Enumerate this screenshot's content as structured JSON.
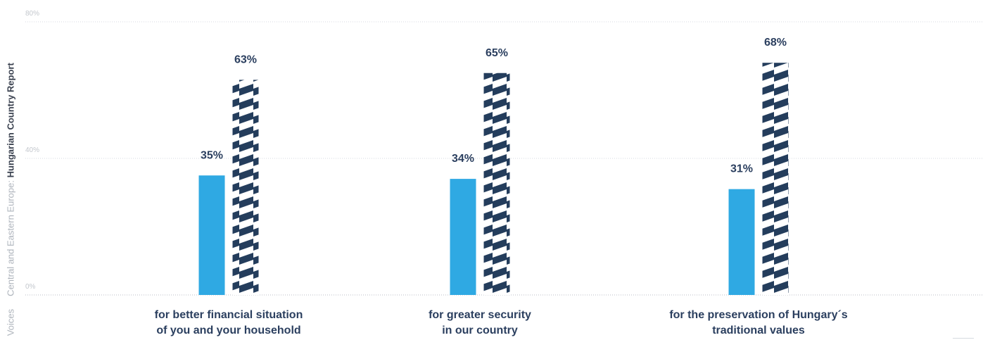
{
  "sidebar": {
    "report_prefix": "Central and Eastern Europe: ",
    "report_name": "Hungarian Country Report",
    "section": "Voices"
  },
  "colors": {
    "solid_bar": "#2fa9e3",
    "striped_bar": "#243d5c",
    "label_text": "#2b3f5f"
  },
  "chart_data": {
    "type": "bar",
    "categories": [
      "for better financial situation\nof you and your household",
      "for greater security\nin our country",
      "for the preservation of Hungary´s\ntraditional values"
    ],
    "series": [
      {
        "values": [
          35,
          34,
          31
        ],
        "labels": [
          "35%",
          "34%",
          "31%"
        ],
        "style": "solid"
      },
      {
        "values": [
          63,
          65,
          68
        ],
        "labels": [
          "63%",
          "65%",
          "68%"
        ],
        "style": "striped"
      }
    ],
    "ylim": [
      0,
      80
    ],
    "yticks": [
      "0%",
      "40%",
      "80%"
    ],
    "grid": true
  }
}
